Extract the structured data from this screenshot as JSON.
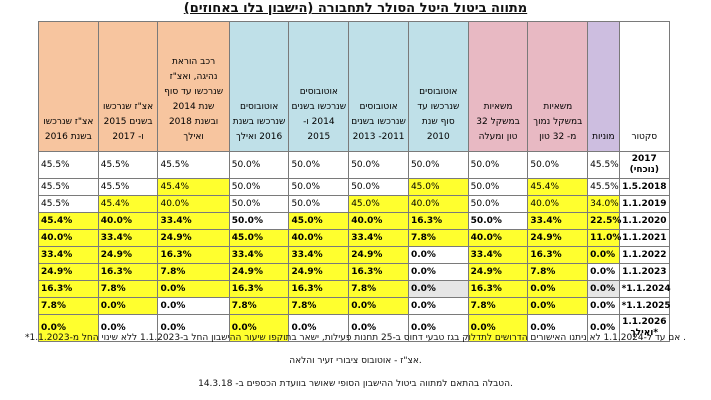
{
  "title": "מתווה ביטול היטל הסולר לתחבורה (הישבון בלו באחוזים)",
  "colors": {
    "orange": "#f7c59f",
    "blue": "#bfe0e8",
    "green": "#c8e6b7",
    "pink": "#e8b9c3",
    "purple": "#cdbee0",
    "highlight": "#ffff2e",
    "gray": "#e6e6e6"
  },
  "table": {
    "headers": [
      {
        "text": "אצ\"ז שנרכשו בשנת 2016",
        "color": "orange"
      },
      {
        "text": "אצ\"ז שנרכשו בשנים 2015 ו- 2017",
        "color": "orange"
      },
      {
        "text": "רכב הוראת נהיגה, ואצ\"ז שנרכשו עד סוף שנת 2014 ובשנת 2018 ואילך",
        "color": "orange"
      },
      {
        "text": "אוטובוסים שנרכשו בשנת 2016 ואילך",
        "color": "blue"
      },
      {
        "text": "אוטובוסים שנרכשו בשנים 2014 ו- 2015",
        "color": "blue"
      },
      {
        "text": "אוטובוסים שנרכשו בשנים 2011- 2013",
        "color": "blue"
      },
      {
        "text": "אוטובוסים שנרכשו עד סוף שנת 2010",
        "color": "blue"
      },
      {
        "text": "משאיות במשקל 32 טון ומעלה",
        "color": "pink"
      },
      {
        "text": "משאיות במשקל נמוך מ- 32 טון",
        "color": "pink"
      },
      {
        "text": "מוניות",
        "color": "purple"
      },
      {
        "text": "סקטור",
        "color": "none"
      }
    ],
    "rows": [
      {
        "sector": "2017 (נוכחי)",
        "key": "2017",
        "values": [
          "45.5%",
          "45.5%",
          "45.5%",
          "50.0%",
          "50.0%",
          "50.0%",
          "50.0%",
          "50.0%",
          "50.0%",
          "45.5%"
        ],
        "hl": [
          0,
          0,
          0,
          0,
          0,
          0,
          0,
          0,
          0,
          0
        ],
        "bold": false
      },
      {
        "sector": "1.5.2018",
        "key": "2018",
        "values": [
          "45.5%",
          "45.5%",
          "45.4%",
          "50.0%",
          "50.0%",
          "50.0%",
          "45.0%",
          "50.0%",
          "45.4%",
          "45.5%"
        ],
        "hl": [
          0,
          0,
          1,
          0,
          0,
          0,
          1,
          0,
          1,
          0
        ],
        "bold": false
      },
      {
        "sector": "1.1.2019",
        "key": "2019",
        "values": [
          "45.5%",
          "45.4%",
          "40.0%",
          "50.0%",
          "50.0%",
          "45.0%",
          "40.0%",
          "50.0%",
          "40.0%",
          "34.0%"
        ],
        "hl": [
          0,
          1,
          1,
          0,
          0,
          1,
          1,
          0,
          1,
          1
        ],
        "bold": false
      },
      {
        "sector": "1.1.2020",
        "key": "2020",
        "values": [
          "45.4%",
          "40.0%",
          "33.4%",
          "50.0%",
          "45.0%",
          "40.0%",
          "16.3%",
          "50.0%",
          "33.4%",
          "22.5%"
        ],
        "hl": [
          1,
          1,
          1,
          0,
          1,
          1,
          1,
          0,
          1,
          1
        ],
        "bold": true
      },
      {
        "sector": "1.1.2021",
        "key": "2021",
        "values": [
          "40.0%",
          "33.4%",
          "24.9%",
          "45.0%",
          "40.0%",
          "33.4%",
          "7.8%",
          "40.0%",
          "24.9%",
          "11.0%"
        ],
        "hl": [
          1,
          1,
          1,
          1,
          1,
          1,
          1,
          1,
          1,
          1
        ],
        "bold": true
      },
      {
        "sector": "1.1.2022",
        "key": "2022",
        "values": [
          "33.4%",
          "24.9%",
          "16.3%",
          "33.4%",
          "33.4%",
          "24.9%",
          "0.0%",
          "33.4%",
          "16.3%",
          "0.0%"
        ],
        "hl": [
          1,
          1,
          1,
          1,
          1,
          1,
          0,
          1,
          1,
          1
        ],
        "bold": true
      },
      {
        "sector": "1.1.2023",
        "key": "2023",
        "values": [
          "24.9%",
          "16.3%",
          "7.8%",
          "24.9%",
          "24.9%",
          "16.3%",
          "0.0%",
          "24.9%",
          "7.8%",
          "0.0%"
        ],
        "hl": [
          1,
          1,
          1,
          1,
          1,
          1,
          0,
          1,
          1,
          0
        ],
        "bold": true
      },
      {
        "sector": "*1.1.2024",
        "key": "2024",
        "values": [
          "16.3%",
          "7.8%",
          "0.0%",
          "16.3%",
          "16.3%",
          "7.8%",
          "0.0%",
          "16.3%",
          "0.0%",
          "0.0%"
        ],
        "hl": [
          1,
          1,
          1,
          1,
          1,
          1,
          2,
          1,
          1,
          2
        ],
        "bold": true
      },
      {
        "sector": "*1.1.2025",
        "key": "2025",
        "values": [
          "7.8%",
          "0.0%",
          "0.0%",
          "7.8%",
          "7.8%",
          "0.0%",
          "0.0%",
          "7.8%",
          "0.0%",
          "0.0%"
        ],
        "hl": [
          1,
          1,
          0,
          1,
          1,
          1,
          0,
          1,
          1,
          0
        ],
        "bold": true
      },
      {
        "sector": "1.1.2026 ואילך*",
        "key": "2026",
        "values": [
          "0.0%",
          "0.0%",
          "0.0%",
          "0.0%",
          "0.0%",
          "0.0%",
          "0.0%",
          "0.0%",
          "0.0%",
          "0.0%"
        ],
        "hl": [
          1,
          0,
          0,
          1,
          0,
          0,
          0,
          1,
          0,
          0
        ],
        "bold": true
      }
    ]
  },
  "notes": [
    "*אם עד ל-1.1.2024 לא ניתנו האישורים הדרושים לתדלוק בגז טבעי דחוס ב-25 תחנות פעילות, ישאר בתוקפו שיעור ההישבון החל ב-1.1.2023 ללא שינוי החל מ-1.1.2023 .",
    "אצ\"ז - אוטובוס ציבורי זעיר והלאה.",
    "הטבלה בהתאם למתווה ביטול ההישבון הסופי שאושר בוועדת הכספים ב- 14.3.18."
  ]
}
